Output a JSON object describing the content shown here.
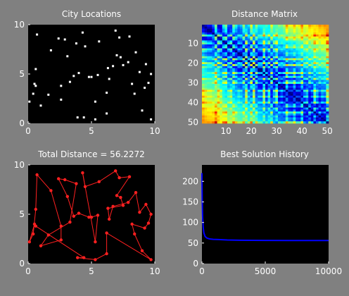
{
  "colors": {
    "figure_bg": "#808080",
    "axes_bg": "#000000",
    "city_marker": "#ffffff",
    "route": "#ff2020",
    "history_line": "#0000ff",
    "text": "#ffffff"
  },
  "chart_data": [
    {
      "type": "scatter",
      "title": "City Locations",
      "xlim": [
        0,
        10
      ],
      "ylim": [
        0,
        10
      ],
      "xticks": [
        "0",
        "5",
        "10"
      ],
      "yticks": [
        "0",
        "5",
        "10"
      ],
      "points": [
        [
          0.1,
          2.2
        ],
        [
          0.4,
          3.0
        ],
        [
          0.5,
          4.0
        ],
        [
          0.6,
          3.8
        ],
        [
          0.6,
          5.5
        ],
        [
          0.7,
          9.0
        ],
        [
          1.0,
          1.8
        ],
        [
          1.6,
          2.9
        ],
        [
          1.8,
          7.4
        ],
        [
          2.4,
          8.6
        ],
        [
          2.6,
          3.8
        ],
        [
          2.6,
          2.4
        ],
        [
          2.9,
          8.5
        ],
        [
          3.1,
          6.8
        ],
        [
          3.3,
          4.2
        ],
        [
          3.6,
          4.8
        ],
        [
          3.8,
          8.1
        ],
        [
          3.9,
          0.6
        ],
        [
          4.0,
          5.1
        ],
        [
          4.3,
          9.2
        ],
        [
          4.4,
          0.6
        ],
        [
          4.5,
          7.8
        ],
        [
          4.8,
          4.7
        ],
        [
          5.0,
          4.7
        ],
        [
          5.3,
          0.4
        ],
        [
          5.5,
          4.9
        ],
        [
          5.3,
          2.2
        ],
        [
          5.6,
          8.3
        ],
        [
          6.2,
          3.1
        ],
        [
          6.2,
          1.0
        ],
        [
          6.3,
          5.6
        ],
        [
          6.4,
          4.5
        ],
        [
          6.7,
          5.8
        ],
        [
          6.9,
          9.4
        ],
        [
          7.0,
          6.9
        ],
        [
          7.3,
          6.7
        ],
        [
          7.2,
          8.7
        ],
        [
          7.5,
          5.9
        ],
        [
          7.9,
          6.2
        ],
        [
          8.0,
          8.8
        ],
        [
          8.2,
          4.0
        ],
        [
          8.4,
          3.0
        ],
        [
          8.5,
          7.2
        ],
        [
          8.8,
          5.2
        ],
        [
          9.0,
          1.3
        ],
        [
          9.2,
          3.6
        ],
        [
          9.3,
          6.0
        ],
        [
          9.5,
          4.1
        ],
        [
          9.7,
          5.0
        ],
        [
          9.7,
          0.4
        ]
      ]
    },
    {
      "type": "heatmap",
      "title": "Distance Matrix",
      "xlim": [
        0.5,
        50.5
      ],
      "ylim": [
        0.5,
        50.5
      ],
      "xticks": [
        "10",
        "20",
        "30",
        "40",
        "50"
      ],
      "yticks": [
        "10",
        "20",
        "30",
        "40",
        "50"
      ],
      "size": 50,
      "colormap": "jet",
      "value_range": [
        0,
        13.5
      ]
    },
    {
      "type": "line",
      "title": "Total Distance = 56.2272",
      "xlim": [
        0,
        10
      ],
      "ylim": [
        0,
        10
      ],
      "xticks": [
        "0",
        "5",
        "10"
      ],
      "yticks": [
        "0",
        "5",
        "10"
      ],
      "closed": true,
      "route_order": [
        0,
        1,
        4,
        5,
        8,
        10,
        11,
        6,
        7,
        14,
        16,
        12,
        9,
        13,
        15,
        18,
        22,
        23,
        25,
        26,
        19,
        21,
        27,
        33,
        36,
        39,
        34,
        35,
        37,
        30,
        31,
        32,
        38,
        42,
        43,
        46,
        48,
        47,
        45,
        40,
        41,
        44,
        49,
        28,
        29,
        24,
        17,
        20,
        3,
        2
      ]
    },
    {
      "type": "line",
      "title": "Best Solution History",
      "xlim": [
        0,
        10000
      ],
      "ylim": [
        0,
        240
      ],
      "xticks": [
        "0",
        "5000",
        "10000"
      ],
      "yticks": [
        "0",
        "50",
        "100",
        "150",
        "200"
      ],
      "x": [
        0,
        20,
        50,
        100,
        150,
        250,
        400,
        600,
        900,
        1300,
        2000,
        3000,
        5000,
        7000,
        10000
      ],
      "y": [
        220,
        160,
        115,
        88,
        75,
        66,
        62,
        60,
        59,
        58.5,
        57.5,
        56.8,
        56.4,
        56.2272,
        56.2272
      ]
    }
  ]
}
